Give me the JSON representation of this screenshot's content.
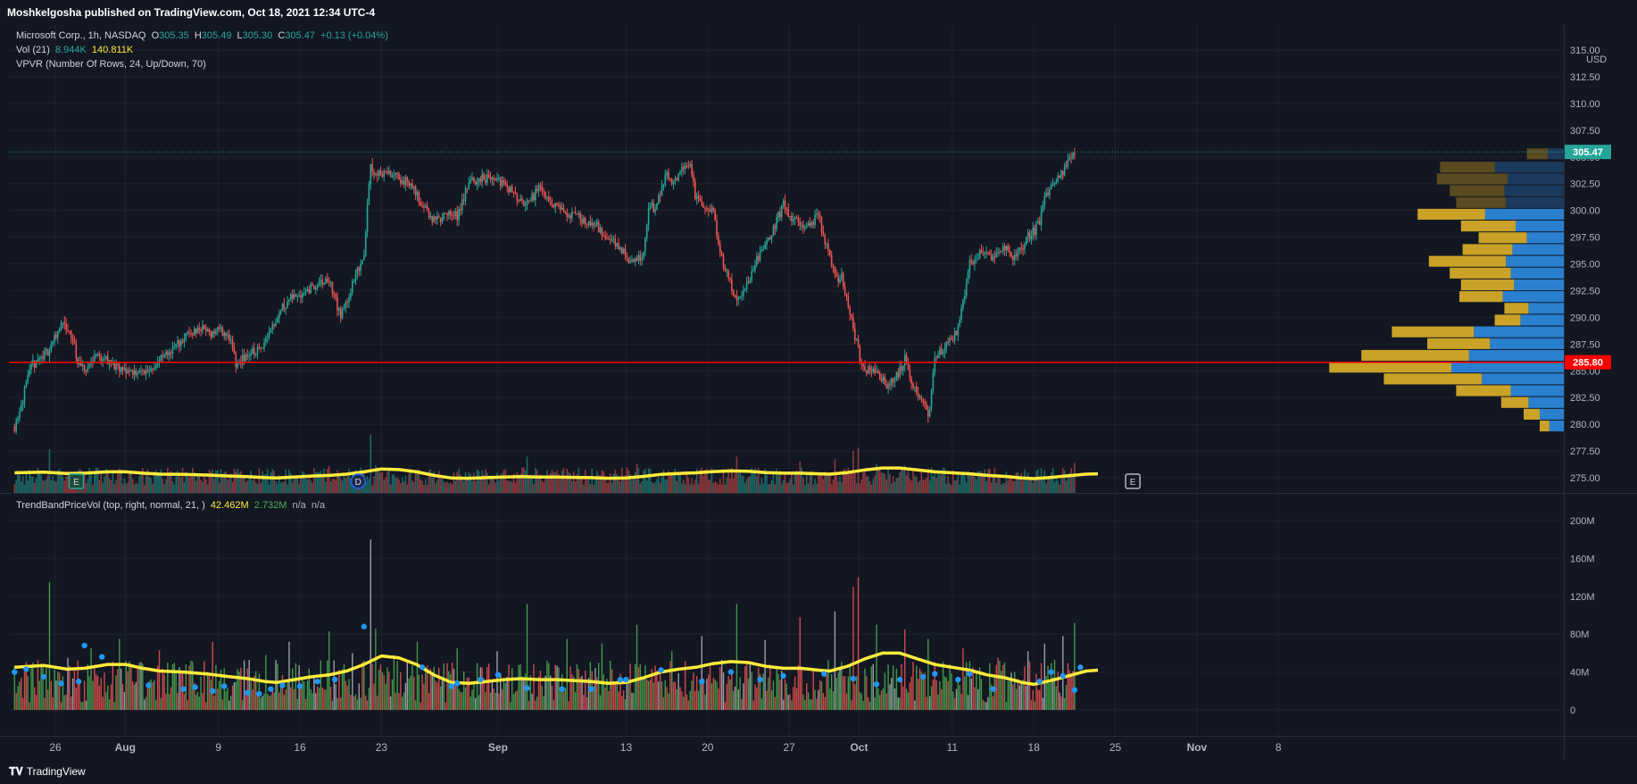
{
  "header": {
    "published": "Moshkelgosha published on TradingView.com, Oct 18, 2021 12:34 UTC-4"
  },
  "legend": {
    "symbol": "Microsoft Corp., 1h, NASDAQ",
    "o_label": "O",
    "o": "305.35",
    "h_label": "H",
    "h": "305.49",
    "l_label": "L",
    "l": "305.30",
    "c_label": "C",
    "c": "305.47",
    "change": "+0.13 (+0.04%)",
    "vol_label": "Vol (21)",
    "vol_1": "8.944K",
    "vol_2": "140.811K",
    "vpvr_label": "VPVR (Number Of Rows, 24, Up/Down, 70)",
    "indicator_label": "TrendBandPriceVol (top, right, normal, 21, )",
    "ind_v1": "42.462M",
    "ind_v2": "2.732M",
    "ind_v3": "n/a",
    "ind_v4": "n/a"
  },
  "footer": {
    "brand": "TradingView"
  },
  "colors": {
    "background": "#131722",
    "up": "#26a69a",
    "down": "#ef5350",
    "ma": "#ffeb3b",
    "vpvr_up": "#2a7fcf",
    "vpvr_down": "#c9a227",
    "poc_line": "#ff0000",
    "dot": "#2196f3"
  },
  "chart_data": {
    "type": "candlestick",
    "title": "Microsoft Corp., 1h, NASDAQ",
    "currency": "USD",
    "price_axis": {
      "ylim": [
        273.5,
        315.0
      ],
      "ticks": [
        "315.00",
        "312.50",
        "310.00",
        "307.50",
        "305.00",
        "302.50",
        "300.00",
        "297.50",
        "295.00",
        "292.50",
        "290.00",
        "287.50",
        "285.00",
        "282.50",
        "280.00",
        "277.50",
        "275.00"
      ]
    },
    "time_axis": {
      "labels": [
        "26",
        "Aug",
        "9",
        "16",
        "23",
        "Sep",
        "13",
        "20",
        "27",
        "Oct",
        "11",
        "18",
        "25",
        "Nov",
        "8"
      ],
      "label_positions_days": [
        0,
        6,
        14,
        21,
        28,
        38,
        49,
        56,
        63,
        69,
        77,
        84,
        91,
        98,
        105
      ]
    },
    "data_end_day": 84.5,
    "last_price": "305.47",
    "poc_price": "285.80",
    "price_path": [
      [
        -3.5,
        279.8
      ],
      [
        -2,
        285.5
      ],
      [
        -0.5,
        287
      ],
      [
        0.5,
        289.5
      ],
      [
        1.5,
        288
      ],
      [
        2,
        285.5
      ],
      [
        2.5,
        285
      ],
      [
        3.5,
        286.5
      ],
      [
        4.5,
        286
      ],
      [
        5.5,
        285
      ],
      [
        6.5,
        285
      ],
      [
        7.5,
        284.8
      ],
      [
        8.5,
        285.5
      ],
      [
        9.5,
        286.5
      ],
      [
        10.5,
        287.5
      ],
      [
        11.5,
        288.5
      ],
      [
        12.5,
        289
      ],
      [
        13.5,
        288.5
      ],
      [
        14,
        289
      ],
      [
        15,
        288
      ],
      [
        15.5,
        285.5
      ],
      [
        16.5,
        286.5
      ],
      [
        17.5,
        287
      ],
      [
        18.5,
        289
      ],
      [
        19.5,
        291
      ],
      [
        20.5,
        292
      ],
      [
        21.5,
        292.5
      ],
      [
        22.5,
        293
      ],
      [
        23.5,
        293.5
      ],
      [
        24.5,
        290
      ],
      [
        25.5,
        293
      ],
      [
        26.5,
        296
      ],
      [
        27,
        304
      ],
      [
        27.5,
        303.5
      ],
      [
        28.5,
        303.5
      ],
      [
        29.5,
        303
      ],
      [
        30.5,
        302.5
      ],
      [
        31.5,
        300.5
      ],
      [
        32.5,
        299
      ],
      [
        33.5,
        299.5
      ],
      [
        34.5,
        299.5
      ],
      [
        35.5,
        302.5
      ],
      [
        36.5,
        303
      ],
      [
        37.5,
        303
      ],
      [
        38.5,
        302.5
      ],
      [
        39.5,
        301.5
      ],
      [
        40.5,
        300.5
      ],
      [
        41.5,
        302
      ],
      [
        42.5,
        301
      ],
      [
        43.5,
        300
      ],
      [
        44.5,
        299.5
      ],
      [
        45.5,
        299
      ],
      [
        46.5,
        298.5
      ],
      [
        47.5,
        297.5
      ],
      [
        48.5,
        296.5
      ],
      [
        49.5,
        295
      ],
      [
        50.5,
        296
      ],
      [
        51,
        300.5
      ],
      [
        51.5,
        300
      ],
      [
        52.5,
        303.5
      ],
      [
        53,
        302.5
      ],
      [
        53.5,
        303.5
      ],
      [
        54.5,
        304.5
      ],
      [
        55,
        301
      ],
      [
        55.5,
        300.5
      ],
      [
        56.5,
        300
      ],
      [
        57,
        296
      ],
      [
        57.5,
        294.5
      ],
      [
        58.5,
        291.5
      ],
      [
        59,
        292.5
      ],
      [
        59.5,
        293.5
      ],
      [
        60.5,
        296
      ],
      [
        61.5,
        298
      ],
      [
        62.5,
        300.5
      ],
      [
        63,
        299.5
      ],
      [
        63.5,
        299
      ],
      [
        64.5,
        298.5
      ],
      [
        65.5,
        299.5
      ],
      [
        66.5,
        295.5
      ],
      [
        67,
        293.5
      ],
      [
        67.5,
        294
      ],
      [
        68.5,
        289
      ],
      [
        69,
        286.5
      ],
      [
        69.5,
        285
      ],
      [
        70.5,
        285
      ],
      [
        71.5,
        283.5
      ],
      [
        72.5,
        285
      ],
      [
        73,
        286.5
      ],
      [
        73.5,
        284
      ],
      [
        74.5,
        282
      ],
      [
        75,
        281
      ],
      [
        75.5,
        286
      ],
      [
        76.5,
        287.5
      ],
      [
        77,
        288
      ],
      [
        77.5,
        289
      ],
      [
        78,
        292
      ],
      [
        78.5,
        295
      ],
      [
        79.5,
        296
      ],
      [
        80.5,
        295.5
      ],
      [
        81.5,
        296.5
      ],
      [
        82.5,
        295.5
      ],
      [
        83.5,
        297.5
      ],
      [
        84,
        298
      ],
      [
        84.5,
        299
      ],
      [
        85,
        301.5
      ],
      [
        85.5,
        302
      ],
      [
        86.5,
        303.5
      ],
      [
        87.5,
        305.47
      ]
    ],
    "vpvr": [
      {
        "price": 305.25,
        "up": 10,
        "down": 13
      },
      {
        "price": 304.0,
        "up": 43,
        "down": 34
      },
      {
        "price": 302.9,
        "up": 35,
        "down": 44
      },
      {
        "price": 301.8,
        "up": 37,
        "down": 34
      },
      {
        "price": 300.7,
        "up": 36,
        "down": 31
      },
      {
        "price": 299.6,
        "up": 49,
        "down": 42
      },
      {
        "price": 298.5,
        "up": 30,
        "down": 34
      },
      {
        "price": 297.4,
        "up": 23,
        "down": 30
      },
      {
        "price": 296.3,
        "up": 32,
        "down": 31
      },
      {
        "price": 295.2,
        "up": 36,
        "down": 48
      },
      {
        "price": 294.1,
        "up": 33,
        "down": 38
      },
      {
        "price": 293.0,
        "up": 31,
        "down": 33
      },
      {
        "price": 291.9,
        "up": 38,
        "down": 27
      },
      {
        "price": 290.8,
        "up": 22,
        "down": 15
      },
      {
        "price": 289.7,
        "up": 27,
        "down": 16
      },
      {
        "price": 288.6,
        "up": 56,
        "down": 51
      },
      {
        "price": 287.5,
        "up": 46,
        "down": 39
      },
      {
        "price": 286.4,
        "up": 59,
        "down": 67
      },
      {
        "price": 285.3,
        "up": 70,
        "down": 76
      },
      {
        "price": 284.2,
        "up": 51,
        "down": 61
      },
      {
        "price": 283.1,
        "up": 33,
        "down": 34
      },
      {
        "price": 282.0,
        "up": 22,
        "down": 17
      },
      {
        "price": 280.9,
        "up": 15,
        "down": 10
      },
      {
        "price": 279.8,
        "up": 9,
        "down": 6
      }
    ],
    "vpvr_scale_max": 200,
    "volume_pane": {
      "ylim": [
        0,
        200
      ],
      "ticks": [
        "200M",
        "160M",
        "120M",
        "80M",
        "40M",
        "0"
      ],
      "tick_values": [
        200,
        160,
        120,
        80,
        40,
        0
      ],
      "unit": "M",
      "ma_path": [
        [
          -3.5,
          45
        ],
        [
          -1,
          47
        ],
        [
          1,
          43
        ],
        [
          2.5,
          44
        ],
        [
          4.5,
          48
        ],
        [
          6,
          48
        ],
        [
          7.5,
          44
        ],
        [
          9,
          41
        ],
        [
          11,
          40
        ],
        [
          13,
          38
        ],
        [
          15,
          35
        ],
        [
          16.5,
          33
        ],
        [
          18,
          30
        ],
        [
          19,
          29
        ],
        [
          20.5,
          32
        ],
        [
          22,
          35
        ],
        [
          23.5,
          37
        ],
        [
          25,
          41
        ],
        [
          26.5,
          48
        ],
        [
          28,
          57
        ],
        [
          29.5,
          55
        ],
        [
          31,
          48
        ],
        [
          32.5,
          37
        ],
        [
          34,
          29
        ],
        [
          35.5,
          28
        ],
        [
          37,
          30
        ],
        [
          38.5,
          32
        ],
        [
          40,
          33
        ],
        [
          41.5,
          32
        ],
        [
          43,
          32
        ],
        [
          44.5,
          31
        ],
        [
          46,
          30
        ],
        [
          47.5,
          28
        ],
        [
          49,
          29
        ],
        [
          50.5,
          34
        ],
        [
          52,
          40
        ],
        [
          53.5,
          43
        ],
        [
          55,
          45
        ],
        [
          56.5,
          49
        ],
        [
          58,
          51
        ],
        [
          59.5,
          50
        ],
        [
          61,
          46
        ],
        [
          62.5,
          44
        ],
        [
          64,
          44
        ],
        [
          65.5,
          42
        ],
        [
          66.5,
          41
        ],
        [
          68,
          46
        ],
        [
          69.5,
          54
        ],
        [
          71,
          60
        ],
        [
          72.5,
          60
        ],
        [
          74,
          54
        ],
        [
          75.5,
          48
        ],
        [
          77,
          45
        ],
        [
          78.5,
          42
        ],
        [
          80,
          37
        ],
        [
          81.5,
          34
        ],
        [
          83,
          29
        ],
        [
          84,
          27
        ],
        [
          85.5,
          31
        ],
        [
          87,
          36
        ],
        [
          88.5,
          41
        ],
        [
          89.5,
          42
        ]
      ],
      "spikes": [
        [
          -2,
          50
        ],
        [
          -0.5,
          135
        ],
        [
          1,
          55
        ],
        [
          3,
          65
        ],
        [
          5.5,
          75
        ],
        [
          9,
          63
        ],
        [
          13.5,
          72
        ],
        [
          18,
          58
        ],
        [
          20,
          72
        ],
        [
          23.5,
          83
        ],
        [
          25.5,
          60
        ],
        [
          27,
          180
        ],
        [
          27.5,
          86
        ],
        [
          29,
          58
        ],
        [
          31,
          72
        ],
        [
          34.5,
          65
        ],
        [
          38,
          62
        ],
        [
          40.5,
          112
        ],
        [
          44,
          75
        ],
        [
          47,
          70
        ],
        [
          50,
          90
        ],
        [
          53,
          62
        ],
        [
          55.5,
          78
        ],
        [
          58.5,
          112
        ],
        [
          61,
          74
        ],
        [
          64,
          98
        ],
        [
          67,
          104
        ],
        [
          68.5,
          130
        ],
        [
          69,
          140
        ],
        [
          70.5,
          90
        ],
        [
          73,
          85
        ],
        [
          75,
          75
        ],
        [
          78,
          65
        ],
        [
          81,
          55
        ],
        [
          83.5,
          62
        ],
        [
          85,
          70
        ],
        [
          86.5,
          78
        ],
        [
          87.5,
          92
        ]
      ],
      "dots": [
        [
          -3.5,
          40
        ],
        [
          -2.5,
          43
        ],
        [
          -1,
          35
        ],
        [
          0.5,
          28
        ],
        [
          2,
          30
        ],
        [
          2.5,
          68
        ],
        [
          4,
          56
        ],
        [
          8,
          26
        ],
        [
          11,
          22
        ],
        [
          12,
          24
        ],
        [
          13.5,
          20
        ],
        [
          14.5,
          25
        ],
        [
          16.5,
          18
        ],
        [
          17.5,
          17
        ],
        [
          18.5,
          22
        ],
        [
          19.5,
          26
        ],
        [
          21,
          25
        ],
        [
          22.5,
          30
        ],
        [
          24,
          32
        ],
        [
          26.5,
          88
        ],
        [
          31.5,
          45
        ],
        [
          34,
          25
        ],
        [
          34.5,
          28
        ],
        [
          36.5,
          32
        ],
        [
          38,
          37
        ],
        [
          40.5,
          23
        ],
        [
          43.5,
          22
        ],
        [
          46,
          22
        ],
        [
          48.5,
          32
        ],
        [
          49,
          32
        ],
        [
          52,
          42
        ],
        [
          55.5,
          30
        ],
        [
          58,
          40
        ],
        [
          60.5,
          32
        ],
        [
          62.5,
          36
        ],
        [
          66,
          38
        ],
        [
          68.5,
          33
        ],
        [
          70.5,
          27
        ],
        [
          72.5,
          32
        ],
        [
          74.5,
          35
        ],
        [
          75.5,
          38
        ],
        [
          77.5,
          32
        ],
        [
          78.5,
          38
        ],
        [
          80.5,
          22
        ],
        [
          84.5,
          30
        ],
        [
          85.5,
          40
        ],
        [
          86.5,
          36
        ],
        [
          87.5,
          21
        ],
        [
          88,
          45
        ]
      ]
    },
    "earnings_markers": [
      {
        "day": 1.8,
        "label": "E"
      },
      {
        "day": 26.0,
        "label": "D"
      },
      {
        "day": 92.5,
        "label": "E"
      }
    ]
  }
}
